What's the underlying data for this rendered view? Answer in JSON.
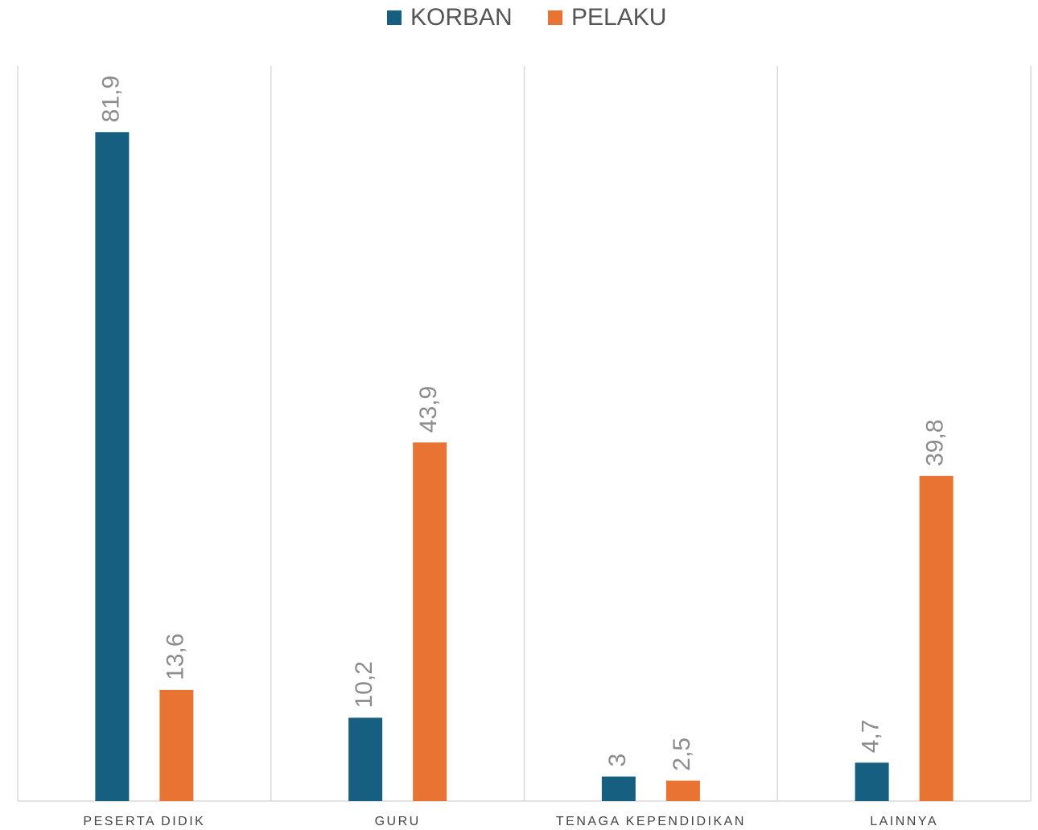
{
  "chart_data": {
    "type": "bar",
    "categories": [
      "PESERTA DIDIK",
      "GURU",
      "TENAGA KEPENDIDIKAN",
      "LAINNYA"
    ],
    "series": [
      {
        "name": "KORBAN",
        "color": "#175f80",
        "values": [
          81.9,
          10.2,
          3,
          4.7
        ],
        "value_labels": [
          "81,9",
          "10,2",
          "3",
          "4,7"
        ]
      },
      {
        "name": "PELAKU",
        "color": "#e87332",
        "values": [
          13.6,
          43.9,
          2.5,
          39.8
        ],
        "value_labels": [
          "13,6",
          "43,9",
          "2,5",
          "39,8"
        ]
      }
    ],
    "ylim": [
      0,
      90
    ],
    "legend": "top"
  }
}
